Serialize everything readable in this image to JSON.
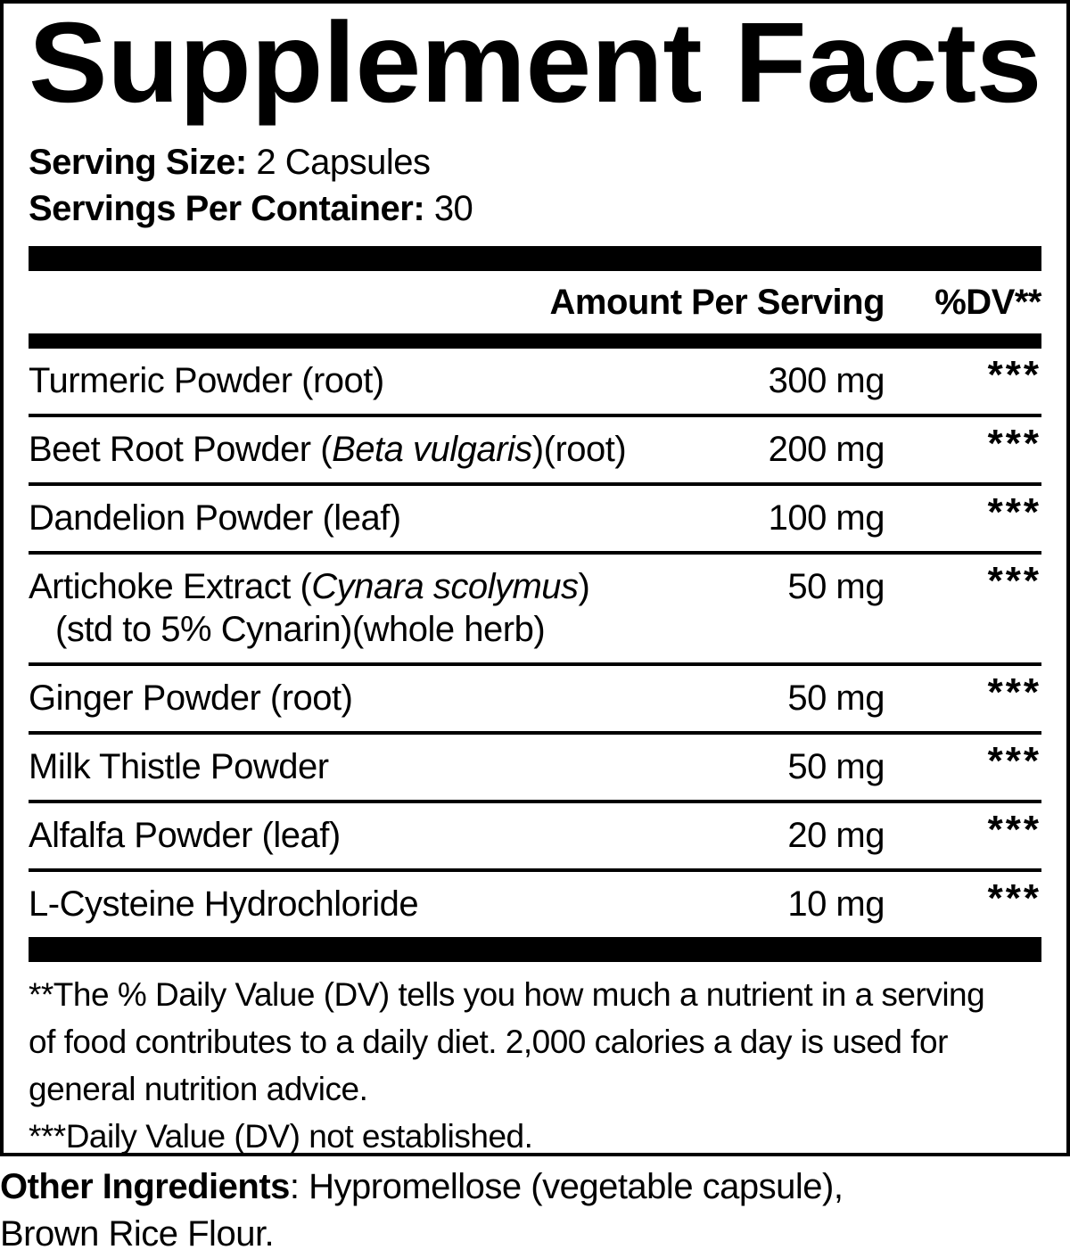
{
  "title": "Supplement Facts",
  "serving": {
    "size_label": "Serving Size:",
    "size_value": "2 Capsules",
    "container_label": "Servings Per Container:",
    "container_value": "30"
  },
  "table": {
    "amount_header": "Amount Per Serving",
    "dv_header": "%DV**",
    "rows": [
      {
        "name_parts": [
          {
            "t": "Turmeric Powder (root)"
          }
        ],
        "amount": "300 mg",
        "dv": "***"
      },
      {
        "name_parts": [
          {
            "t": "Beet Root Powder ("
          },
          {
            "t": "Beta vulgaris",
            "i": true
          },
          {
            "t": ")(root)"
          }
        ],
        "amount": "200 mg",
        "dv": "***"
      },
      {
        "name_parts": [
          {
            "t": "Dandelion Powder (leaf)"
          }
        ],
        "amount": "100 mg",
        "dv": "***"
      },
      {
        "name_parts": [
          {
            "t": "Artichoke Extract ("
          },
          {
            "t": "Cynara scolymus",
            "i": true
          },
          {
            "t": ")"
          }
        ],
        "name_line2": "(std to 5% Cynarin)(whole herb)",
        "amount": "50 mg",
        "dv": "***"
      },
      {
        "name_parts": [
          {
            "t": "Ginger Powder (root)"
          }
        ],
        "amount": "50 mg",
        "dv": "***"
      },
      {
        "name_parts": [
          {
            "t": "Milk Thistle Powder"
          }
        ],
        "amount": "50 mg",
        "dv": "***"
      },
      {
        "name_parts": [
          {
            "t": "Alfalfa Powder (leaf)"
          }
        ],
        "amount": "20 mg",
        "dv": "***"
      },
      {
        "name_parts": [
          {
            "t": "L-Cysteine Hydrochloride"
          }
        ],
        "amount": "10 mg",
        "dv": "***"
      }
    ]
  },
  "footnotes": {
    "lines": [
      "**The % Daily Value (DV) tells you how much a nutrient in a serving",
      "of food contributes to a daily diet. 2,000 calories a day is used for",
      "general nutrition advice.",
      "***Daily Value (DV) not established."
    ]
  },
  "other_ingredients": {
    "label": "Other Ingredients",
    "line1_rest": ": Hypromellose (vegetable capsule),",
    "line2": "Brown Rice Flour."
  },
  "colors": {
    "ink": "#000000",
    "paper": "#ffffff"
  }
}
